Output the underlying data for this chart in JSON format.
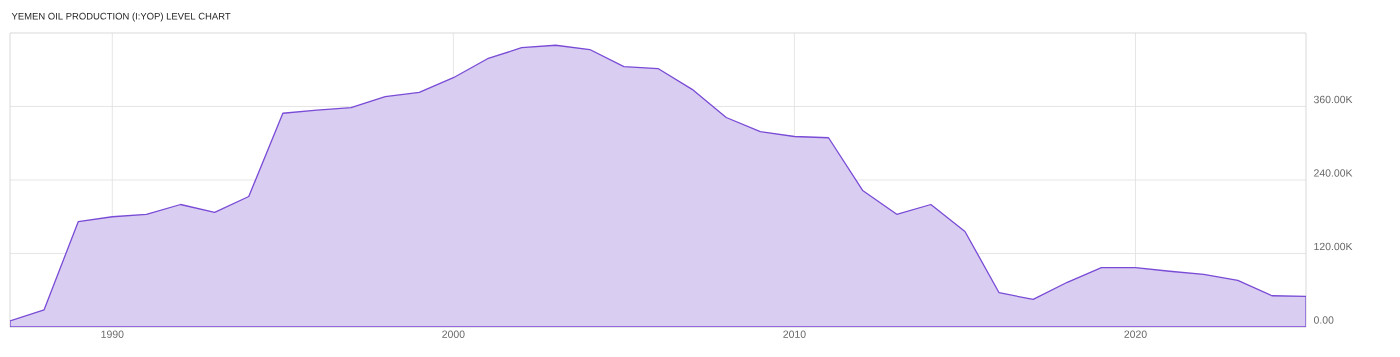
{
  "chart_data": {
    "type": "area",
    "title": "YEMEN OIL PRODUCTION (I:YOP) LEVEL CHART",
    "x": [
      1987,
      1988,
      1989,
      1990,
      1991,
      1992,
      1993,
      1994,
      1995,
      1996,
      1997,
      1998,
      1999,
      2000,
      2001,
      2002,
      2003,
      2004,
      2005,
      2006,
      2007,
      2008,
      2009,
      2010,
      2011,
      2012,
      2013,
      2014,
      2015,
      2016,
      2017,
      2018,
      2019,
      2020,
      2021,
      2022,
      2023,
      2024,
      2025
    ],
    "values": [
      10000,
      28000,
      172000,
      180000,
      184000,
      200000,
      187000,
      213000,
      349000,
      354000,
      358000,
      376000,
      383000,
      407000,
      438000,
      456000,
      460000,
      453000,
      425000,
      422000,
      388000,
      342000,
      319000,
      311000,
      309000,
      223000,
      184000,
      200000,
      156000,
      56000,
      45000,
      73000,
      97000,
      97000,
      91000,
      86000,
      76000,
      51000,
      50000
    ],
    "color": "#d9cdf1",
    "xlim": [
      1987,
      2025
    ],
    "xticks": [
      1990,
      2000,
      2010,
      2020
    ],
    "ylim": [
      0,
      480000
    ],
    "yticks": [
      {
        "value": 0,
        "label": "0.00"
      },
      {
        "value": 120000,
        "label": "120.00K"
      },
      {
        "value": 240000,
        "label": "240.00K"
      },
      {
        "value": 360000,
        "label": "360.00K"
      }
    ],
    "grid": true
  }
}
